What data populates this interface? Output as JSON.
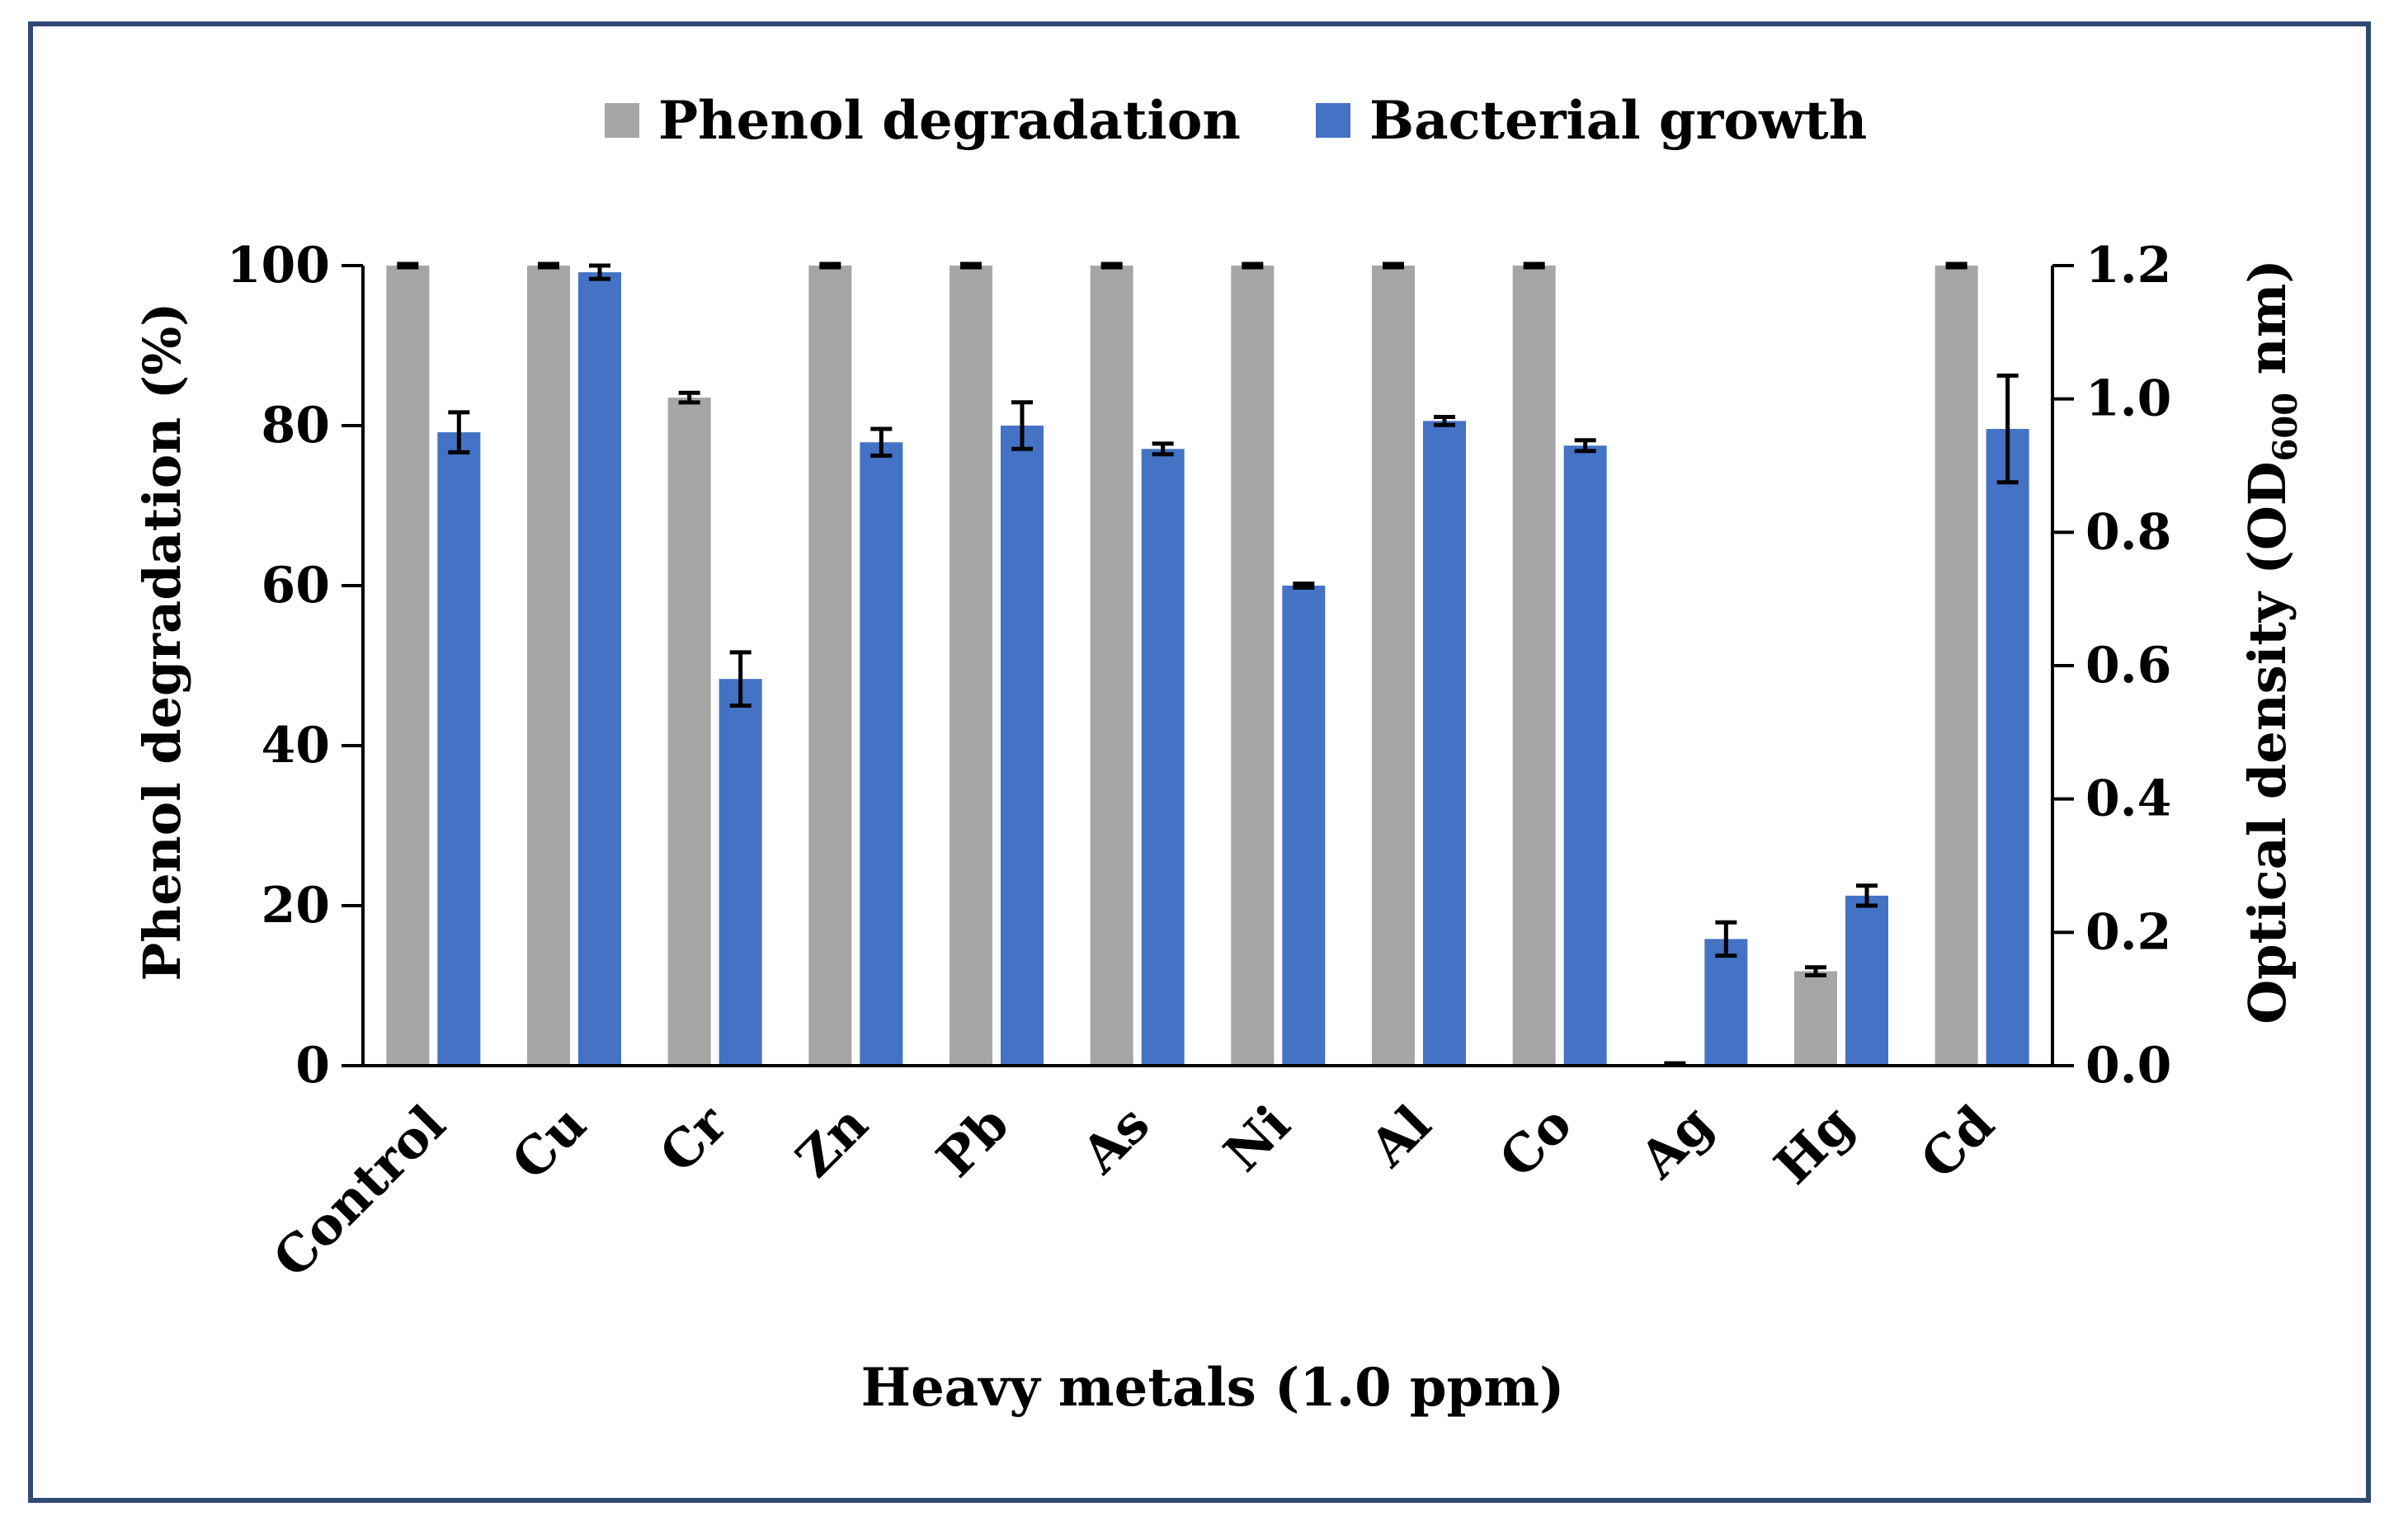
{
  "chart_data": {
    "type": "bar",
    "title": "",
    "xlabel": "Heavy metals (1.0 ppm)",
    "ylabel": "Phenol degradation (%)",
    "y2label": {
      "main": "Optical density (OD",
      "sub": "600",
      "tail": " nm)"
    },
    "ylim": [
      0,
      100
    ],
    "y2lim": [
      0.0,
      1.2
    ],
    "yticks": [
      "0",
      "20",
      "40",
      "60",
      "80",
      "100"
    ],
    "y2ticks": [
      "0.0",
      "0.2",
      "0.4",
      "0.6",
      "0.8",
      "1.0",
      "1.2"
    ],
    "grid": false,
    "legend_position": "top-center",
    "categories": [
      "Control",
      "Cu",
      "Cr",
      "Zn",
      "Pb",
      "As",
      "Ni",
      "Al",
      "Co",
      "Ag",
      "Hg",
      "Cd"
    ],
    "series": [
      {
        "name": "Phenol degradation",
        "axis": "left",
        "color": "#a6a6a6",
        "values": [
          100,
          100,
          83.5,
          100,
          100,
          100,
          100,
          100,
          100,
          0.2,
          11.8,
          100
        ],
        "errors": [
          0.2,
          0.2,
          0.6,
          0.2,
          0.2,
          0.2,
          0.2,
          0.2,
          0.2,
          0.1,
          0.5,
          0.2
        ]
      },
      {
        "name": "Bacterial growth",
        "axis": "right",
        "color": "#4472c4",
        "values": [
          0.95,
          1.19,
          0.58,
          0.935,
          0.96,
          0.925,
          0.72,
          0.967,
          0.93,
          0.19,
          0.255,
          0.955
        ],
        "errors": [
          0.03,
          0.01,
          0.04,
          0.02,
          0.035,
          0.008,
          0.003,
          0.006,
          0.008,
          0.025,
          0.015,
          0.08
        ]
      }
    ]
  }
}
